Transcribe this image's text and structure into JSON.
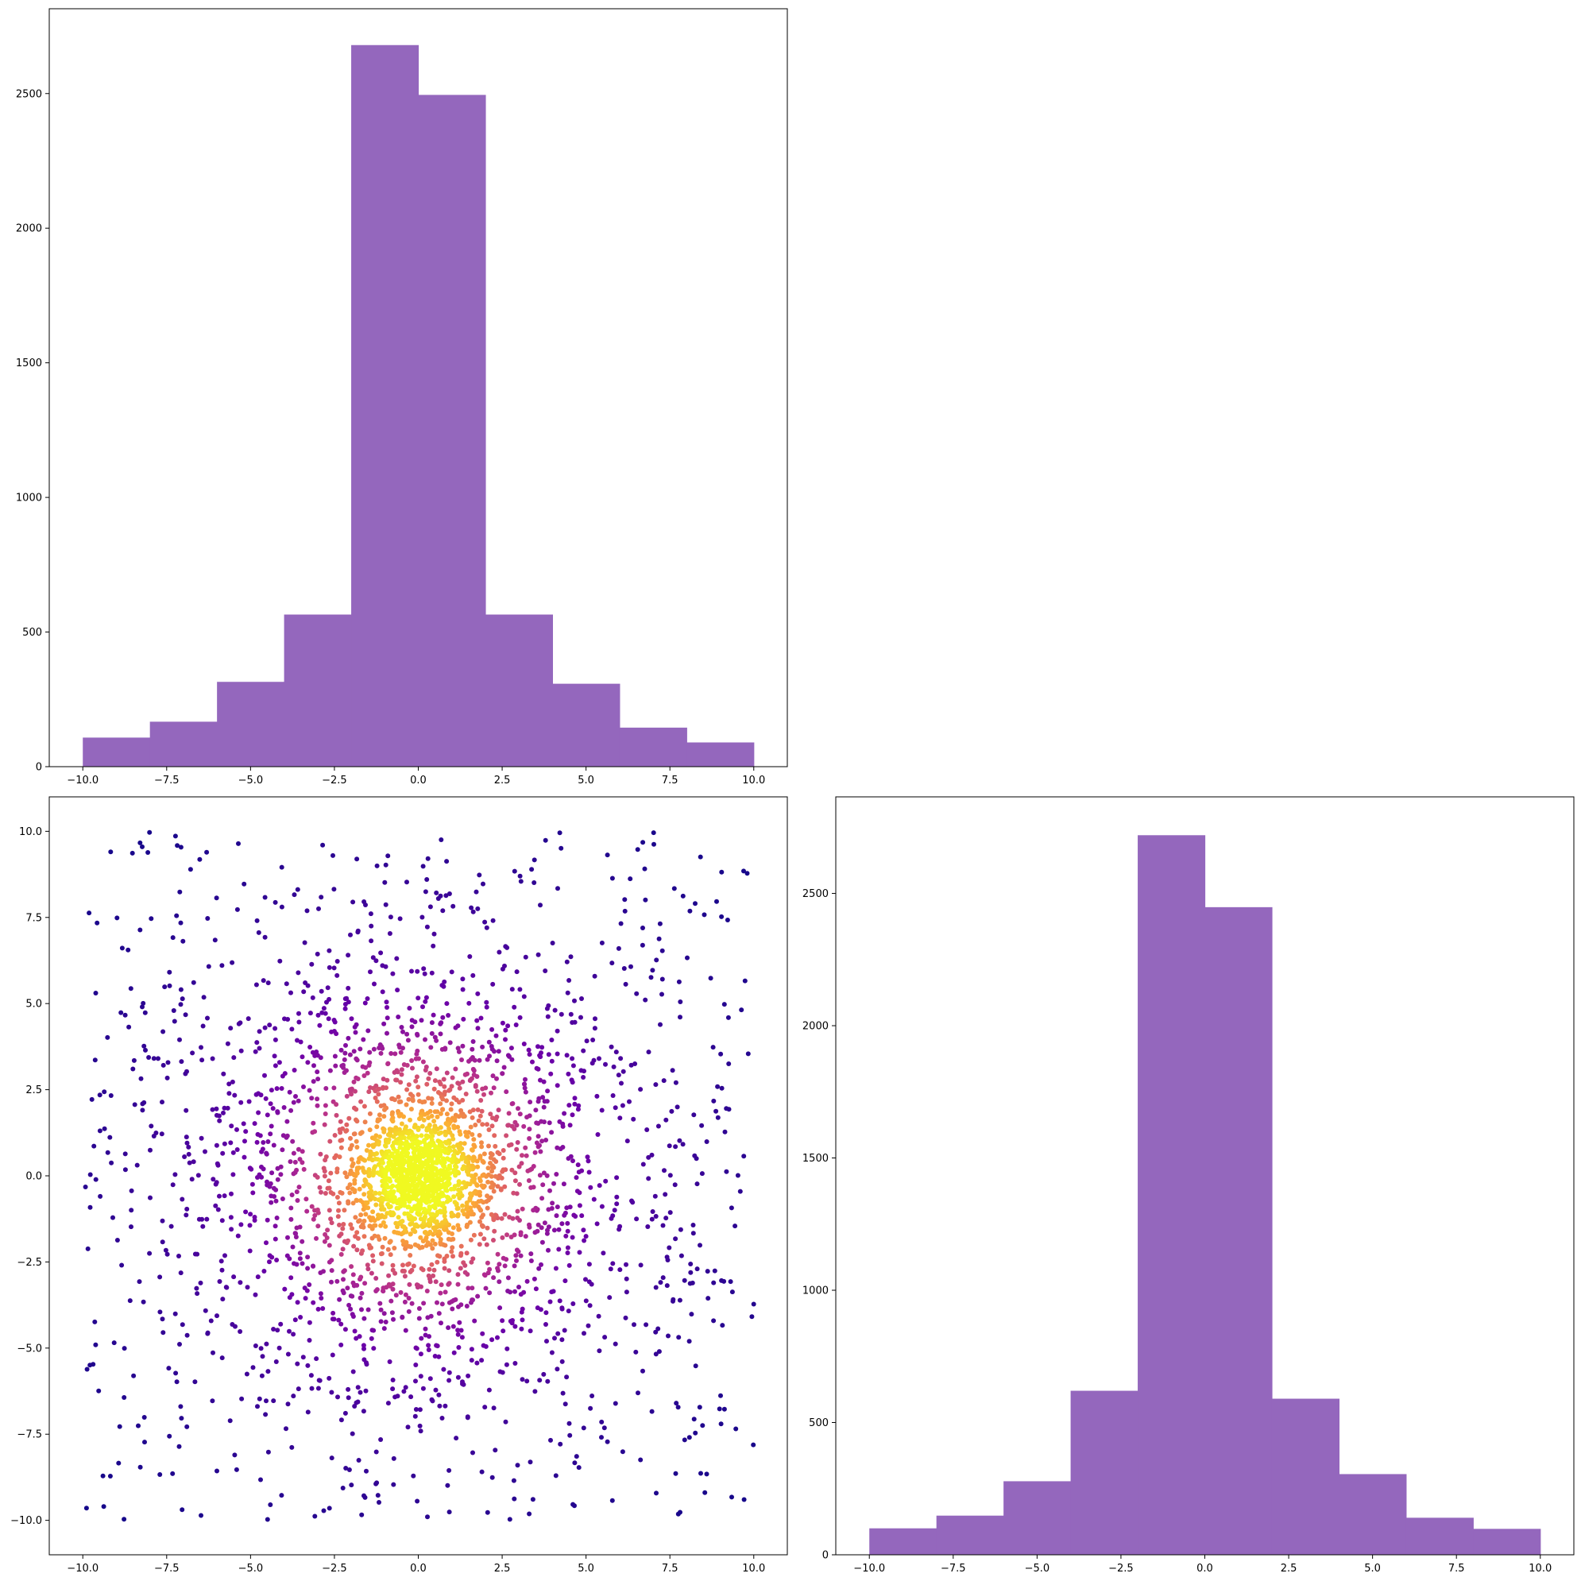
{
  "figure": {
    "background": "#ffffff"
  },
  "chart_data": [
    {
      "type": "bar",
      "panel": "top-left",
      "title": "",
      "xlabel": "",
      "ylabel": "",
      "bar_color": "#9467bd",
      "bin_edges": [
        -10,
        -8,
        -6,
        -4,
        -2,
        0,
        2,
        4,
        6,
        8,
        10
      ],
      "values": [
        108,
        167,
        315,
        565,
        2680,
        2495,
        565,
        308,
        145,
        90
      ],
      "xlim": [
        -11,
        11
      ],
      "ylim": [
        0,
        2815
      ],
      "xticks": [
        -10,
        -7.5,
        -5,
        -2.5,
        0,
        2.5,
        5,
        7.5,
        10
      ],
      "xtick_labels": [
        "−10.0",
        "−7.5",
        "−5.0",
        "−2.5",
        "0.0",
        "2.5",
        "5.0",
        "7.5",
        "10.0"
      ],
      "yticks": [
        0,
        500,
        1000,
        1500,
        2000,
        2500
      ],
      "ytick_labels": [
        "0",
        "500",
        "1000",
        "1500",
        "2000",
        "2500"
      ],
      "grid": false
    },
    {
      "type": "scatter",
      "panel": "bottom-left",
      "title": "",
      "xlabel": "",
      "ylabel": "",
      "colormap": [
        "#0d0887",
        "#6a00a8",
        "#b12a90",
        "#e16462",
        "#fca636",
        "#f0f921"
      ],
      "n_points": 3200,
      "x_range": [
        -10,
        10
      ],
      "y_range": [
        -10,
        10
      ],
      "center": [
        0,
        0
      ],
      "color_by": "density",
      "xlim": [
        -11,
        11
      ],
      "ylim": [
        -11,
        11
      ],
      "xticks": [
        -10,
        -7.5,
        -5,
        -2.5,
        0,
        2.5,
        5,
        7.5,
        10
      ],
      "xtick_labels": [
        "−10.0",
        "−7.5",
        "−5.0",
        "−2.5",
        "0.0",
        "2.5",
        "5.0",
        "7.5",
        "10.0"
      ],
      "yticks": [
        -10,
        -7.5,
        -5,
        -2.5,
        0,
        2.5,
        5,
        7.5,
        10
      ],
      "ytick_labels": [
        "−10.0",
        "−7.5",
        "−5.0",
        "−2.5",
        "0.0",
        "2.5",
        "5.0",
        "7.5",
        "10.0"
      ],
      "grid": false
    },
    {
      "type": "bar",
      "panel": "bottom-right",
      "title": "",
      "xlabel": "",
      "ylabel": "",
      "bar_color": "#9467bd",
      "bin_edges": [
        -10,
        -8,
        -6,
        -4,
        -2,
        0,
        2,
        4,
        6,
        8,
        10
      ],
      "values": [
        100,
        148,
        278,
        620,
        2720,
        2448,
        590,
        305,
        140,
        98
      ],
      "xlim": [
        -11,
        11
      ],
      "ylim": [
        0,
        2865
      ],
      "xticks": [
        -10,
        -7.5,
        -5,
        -2.5,
        0,
        2.5,
        5,
        7.5,
        10
      ],
      "xtick_labels": [
        "−10.0",
        "−7.5",
        "−5.0",
        "−2.5",
        "0.0",
        "2.5",
        "5.0",
        "7.5",
        "10.0"
      ],
      "yticks": [
        0,
        500,
        1000,
        1500,
        2000,
        2500
      ],
      "ytick_labels": [
        "0",
        "500",
        "1000",
        "1500",
        "2000",
        "2500"
      ],
      "grid": false
    }
  ]
}
